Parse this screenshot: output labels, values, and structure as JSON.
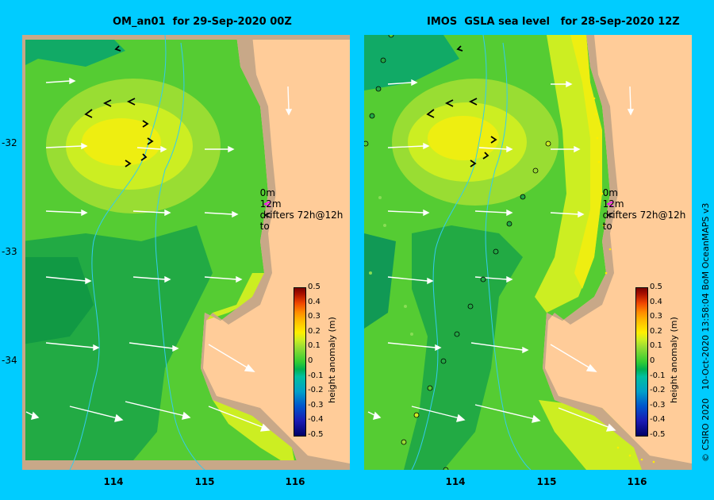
{
  "panels": [
    {
      "title": "OM_an01  for 29-Sep-2020 00Z"
    },
    {
      "title": "IMOS  GSLA sea level   for 28-Sep-2020 12Z"
    }
  ],
  "axes": {
    "latitude_ticks": [
      "-32",
      "-33",
      "-34"
    ],
    "longitude_ticks": [
      "114",
      "115",
      "116"
    ]
  },
  "legend_text": {
    "line1_depth": "0m",
    "line1_label": "drifters 72h@12h",
    "line2_depth": "12m",
    "line2_label": "to",
    "line1_color": "#ff00ff",
    "line2_color": "#000000"
  },
  "colorbar": {
    "label": "height anomaly (m)",
    "ticks": [
      "0.5",
      "0.4",
      "0.3",
      "0.2",
      "0.1",
      "0",
      "-0.1",
      "-0.2",
      "-0.3",
      "-0.4",
      "-0.5"
    ],
    "range": [
      -0.5,
      0.5
    ]
  },
  "credit": "© CSIRO 2020   10-Oct-2020 13:58:04 BoM OceanMAPS v3"
}
